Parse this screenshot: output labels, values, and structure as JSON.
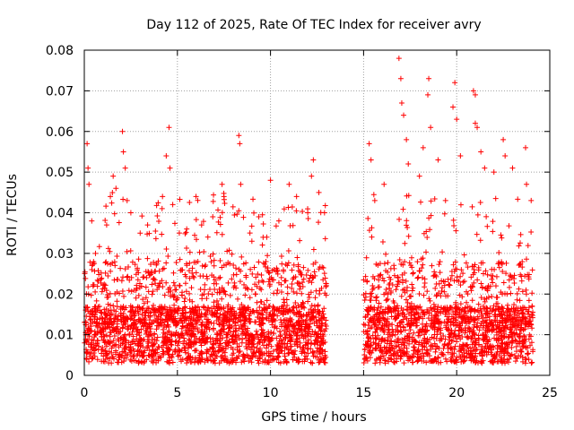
{
  "chart_data": {
    "type": "scatter",
    "title": "Day 112 of 2025, Rate Of TEC Index for receiver avry",
    "xlabel": "GPS time / hours",
    "ylabel": "ROTI / TECUs",
    "xlim": [
      0,
      25
    ],
    "ylim": [
      0,
      0.08
    ],
    "xticks": [
      0,
      5,
      10,
      15,
      20,
      25
    ],
    "xtick_labels": [
      "0",
      "5",
      "10",
      "15",
      "20",
      "25"
    ],
    "yticks": [
      0,
      0.01,
      0.02,
      0.03,
      0.04,
      0.05,
      0.06,
      0.07,
      0.08
    ],
    "ytick_labels": [
      "0",
      "0.01",
      "0.02",
      "0.03",
      "0.04",
      "0.05",
      "0.06",
      "0.07",
      "0.08"
    ],
    "grid": true,
    "marker": "+",
    "marker_color": "#ff0000",
    "data_gap_hours": [
      13.0,
      15.0
    ],
    "series": [
      {
        "name": "ROTI",
        "points": [
          [
            0.15,
            0.057
          ],
          [
            0.2,
            0.051
          ],
          [
            0.25,
            0.047
          ],
          [
            0.4,
            0.038
          ],
          [
            0.6,
            0.03
          ],
          [
            1.2,
            0.037
          ],
          [
            1.4,
            0.044
          ],
          [
            1.55,
            0.049
          ],
          [
            1.7,
            0.046
          ],
          [
            2.05,
            0.06
          ],
          [
            2.1,
            0.055
          ],
          [
            2.2,
            0.051
          ],
          [
            2.3,
            0.043
          ],
          [
            2.5,
            0.04
          ],
          [
            3.0,
            0.035
          ],
          [
            3.4,
            0.037
          ],
          [
            4.2,
            0.044
          ],
          [
            4.4,
            0.054
          ],
          [
            4.55,
            0.061
          ],
          [
            4.6,
            0.051
          ],
          [
            4.75,
            0.042
          ],
          [
            5.5,
            0.036
          ],
          [
            6.0,
            0.044
          ],
          [
            6.3,
            0.037
          ],
          [
            6.9,
            0.039
          ],
          [
            7.4,
            0.047
          ],
          [
            7.5,
            0.044
          ],
          [
            8.3,
            0.059
          ],
          [
            8.35,
            0.057
          ],
          [
            8.4,
            0.047
          ],
          [
            9.0,
            0.033
          ],
          [
            9.8,
            0.034
          ],
          [
            10.0,
            0.048
          ],
          [
            10.45,
            0.038
          ],
          [
            11.0,
            0.047
          ],
          [
            11.4,
            0.044
          ],
          [
            12.0,
            0.04
          ],
          [
            12.2,
            0.049
          ],
          [
            12.3,
            0.053
          ],
          [
            12.6,
            0.045
          ],
          [
            12.9,
            0.04
          ],
          [
            15.3,
            0.057
          ],
          [
            15.4,
            0.053
          ],
          [
            15.6,
            0.043
          ],
          [
            16.1,
            0.047
          ],
          [
            16.9,
            0.078
          ],
          [
            17.0,
            0.073
          ],
          [
            17.05,
            0.067
          ],
          [
            17.15,
            0.064
          ],
          [
            17.3,
            0.058
          ],
          [
            17.4,
            0.052
          ],
          [
            18.0,
            0.049
          ],
          [
            18.2,
            0.056
          ],
          [
            18.5,
            0.073
          ],
          [
            18.45,
            0.069
          ],
          [
            18.6,
            0.061
          ],
          [
            19.0,
            0.053
          ],
          [
            19.4,
            0.043
          ],
          [
            19.8,
            0.066
          ],
          [
            19.9,
            0.072
          ],
          [
            20.0,
            0.063
          ],
          [
            20.2,
            0.054
          ],
          [
            20.9,
            0.07
          ],
          [
            21.0,
            0.069
          ],
          [
            21.0,
            0.062
          ],
          [
            21.1,
            0.061
          ],
          [
            21.3,
            0.055
          ],
          [
            21.5,
            0.051
          ],
          [
            22.0,
            0.05
          ],
          [
            22.5,
            0.058
          ],
          [
            22.6,
            0.054
          ],
          [
            23.0,
            0.051
          ],
          [
            23.7,
            0.056
          ],
          [
            23.75,
            0.047
          ],
          [
            24.0,
            0.043
          ]
        ]
      }
    ]
  }
}
